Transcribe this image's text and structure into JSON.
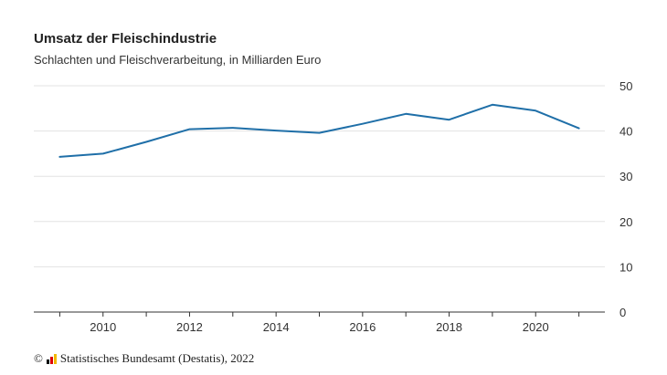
{
  "chart_data": {
    "type": "line",
    "title": "Umsatz der Fleischindustrie",
    "subtitle": "Schlachten und Fleischverarbeitung, in Milliarden Euro",
    "x": [
      2009,
      2010,
      2011,
      2012,
      2013,
      2014,
      2015,
      2016,
      2017,
      2018,
      2019,
      2020,
      2021
    ],
    "series": [
      {
        "values": [
          34.3,
          35.0,
          37.6,
          40.4,
          40.7,
          40.1,
          39.6,
          41.6,
          43.8,
          42.5,
          45.8,
          44.5,
          40.6
        ]
      }
    ],
    "x_ticks": [
      2010,
      2012,
      2014,
      2016,
      2018,
      2020
    ],
    "x_tick_labels": [
      "2010",
      "2012",
      "2014",
      "2016",
      "2018",
      "2020"
    ],
    "y_ticks": [
      0,
      10,
      20,
      30,
      40,
      50
    ],
    "y_tick_labels": [
      "0",
      "10",
      "20",
      "30",
      "40",
      "50"
    ],
    "ylim": [
      0,
      50
    ],
    "xlim": [
      2008.4,
      2021.6
    ],
    "grid": true,
    "y_axis_side": "right",
    "line_color": "#1f6fa8"
  },
  "source": {
    "copyright": "©",
    "text": "Statistisches Bundesamt (Destatis), 2022"
  }
}
